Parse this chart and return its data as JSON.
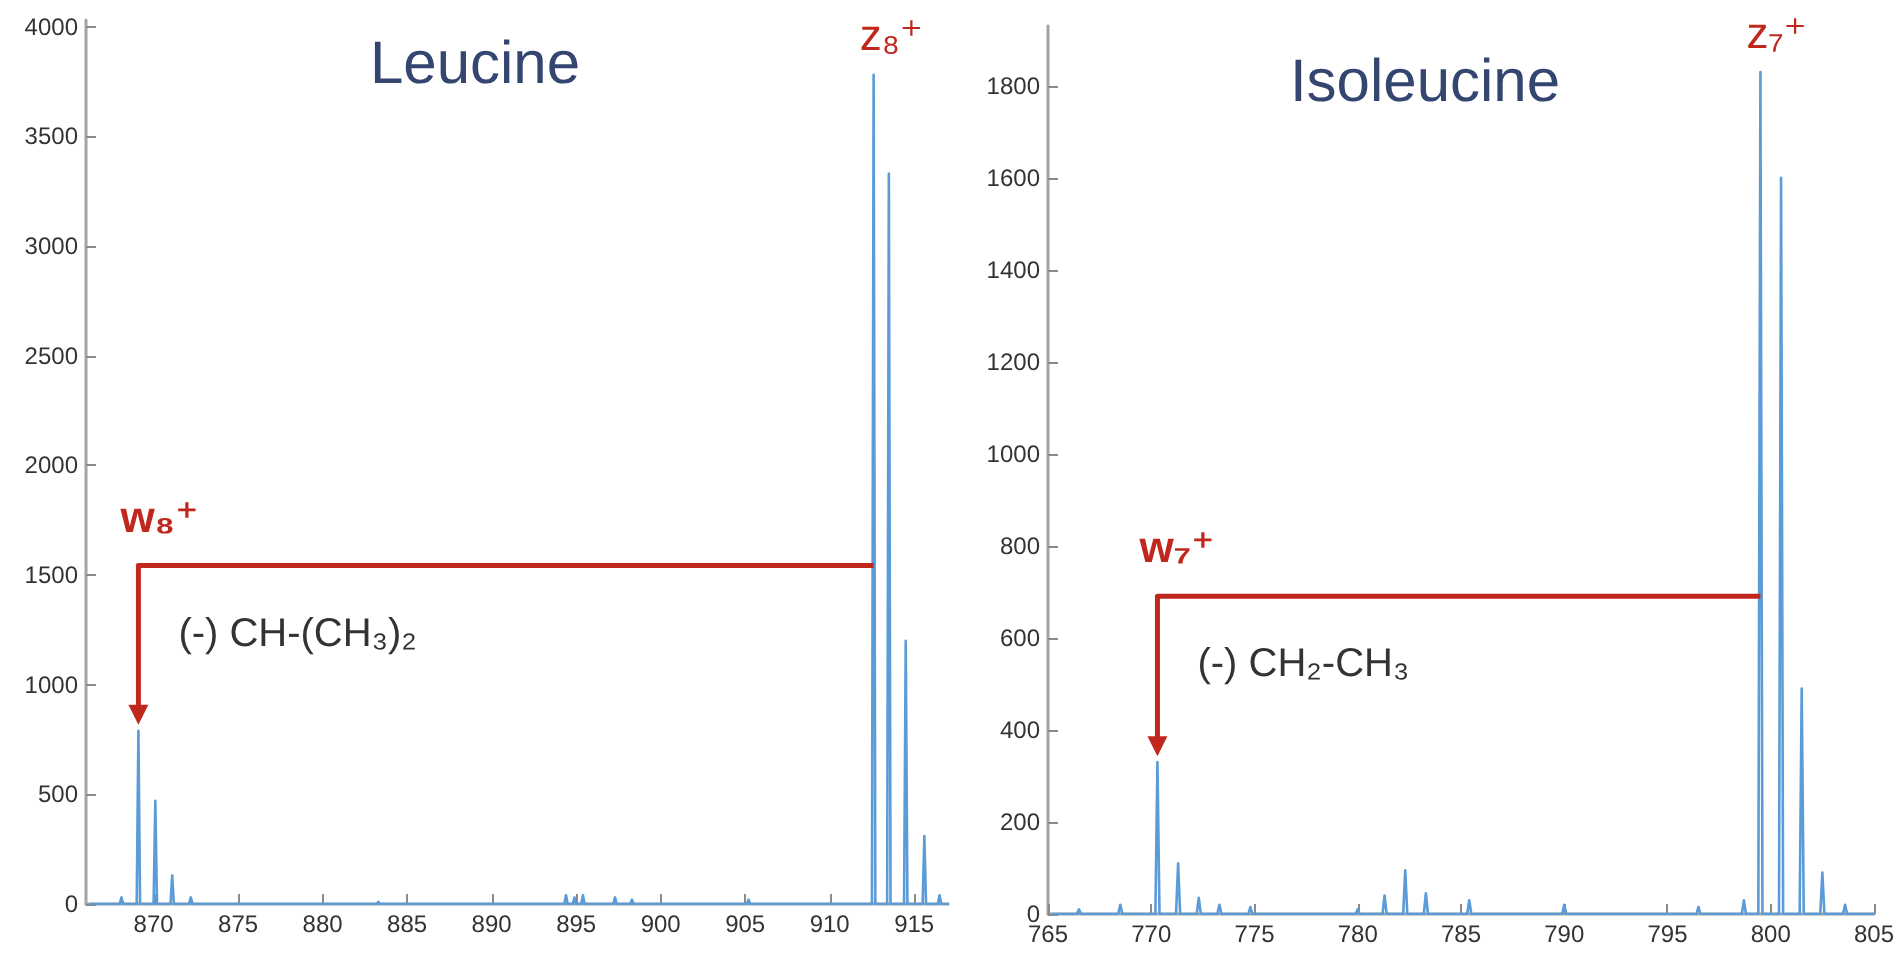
{
  "chart_data": [
    {
      "type": "line",
      "title": "Leucine",
      "color": "#5a9bd8",
      "x": [
        866.3,
        868.0,
        868.1,
        868.2,
        869.0,
        869.1,
        869.2,
        870.0,
        870.1,
        870.2,
        871.0,
        871.1,
        871.2,
        872.1,
        872.2,
        872.3,
        883.2,
        883.3,
        883.4,
        894.3,
        894.4,
        894.5,
        894.8,
        894.9,
        895.0,
        895.3,
        895.4,
        895.5,
        897.2,
        897.3,
        897.4,
        898.2,
        898.3,
        898.4,
        905.1,
        905.2,
        905.3,
        912.5,
        912.6,
        912.7,
        913.4,
        913.5,
        913.6,
        914.4,
        914.5,
        914.6,
        915.5,
        915.6,
        915.7,
        916.4,
        916.5,
        916.6,
        917.0
      ],
      "values": [
        0,
        0,
        30,
        0,
        0,
        790,
        0,
        0,
        470,
        0,
        0,
        130,
        0,
        0,
        30,
        0,
        0,
        10,
        0,
        0,
        40,
        0,
        0,
        30,
        0,
        0,
        40,
        0,
        0,
        30,
        0,
        0,
        20,
        0,
        0,
        20,
        0,
        0,
        3780,
        0,
        0,
        3330,
        0,
        0,
        1200,
        0,
        0,
        310,
        0,
        0,
        40,
        0,
        0
      ],
      "xlim": [
        866,
        917
      ],
      "xticks": [
        870,
        875,
        880,
        885,
        890,
        895,
        900,
        905,
        910,
        915
      ],
      "ylim": [
        0,
        4030
      ],
      "yticks": [
        0,
        500,
        1000,
        1500,
        2000,
        2500,
        3000,
        3500,
        4000
      ],
      "annotations": [
        {
          "text": "z₈⁺",
          "x": 912.6,
          "y": 3780
        },
        "w₈⁺",
        "(-) CH-(CH₃)₂"
      ]
    },
    {
      "type": "line",
      "title": "Isoleucine",
      "color": "#5a9bd8",
      "x": [
        765.2,
        766.4,
        766.5,
        766.6,
        768.4,
        768.5,
        768.6,
        770.2,
        770.3,
        770.4,
        771.2,
        771.3,
        771.4,
        772.2,
        772.3,
        772.4,
        773.2,
        773.3,
        773.4,
        774.7,
        774.8,
        774.9,
        779.9,
        780.0,
        780.1,
        781.2,
        781.3,
        781.4,
        782.2,
        782.3,
        782.4,
        783.2,
        783.3,
        783.4,
        785.3,
        785.4,
        785.5,
        789.9,
        790.0,
        790.1,
        796.4,
        796.5,
        796.6,
        798.6,
        798.7,
        798.8,
        799.4,
        799.5,
        799.6,
        800.4,
        800.5,
        800.6,
        801.4,
        801.5,
        801.6,
        802.4,
        802.5,
        802.6,
        803.5,
        803.6,
        803.7,
        805.0
      ],
      "values": [
        0,
        0,
        10,
        0,
        0,
        20,
        0,
        0,
        330,
        0,
        0,
        110,
        0,
        0,
        35,
        0,
        0,
        20,
        0,
        0,
        15,
        0,
        0,
        10,
        0,
        0,
        40,
        0,
        0,
        95,
        0,
        0,
        45,
        0,
        0,
        30,
        0,
        0,
        20,
        0,
        0,
        15,
        0,
        0,
        30,
        0,
        0,
        1830,
        0,
        0,
        1600,
        0,
        0,
        490,
        0,
        0,
        90,
        0,
        0,
        20,
        0,
        0
      ],
      "xlim": [
        765,
        805
      ],
      "xticks": [
        765,
        770,
        775,
        780,
        785,
        790,
        795,
        800,
        805
      ],
      "ylim": [
        0,
        1930
      ],
      "yticks": [
        0,
        200,
        400,
        600,
        800,
        1000,
        1200,
        1400,
        1600,
        1800
      ],
      "annotations": [
        {
          "text": "z₇⁺",
          "x": 799.5,
          "y": 1830
        },
        "w₇⁺",
        "(-) CH₂-CH₃"
      ]
    }
  ]
}
